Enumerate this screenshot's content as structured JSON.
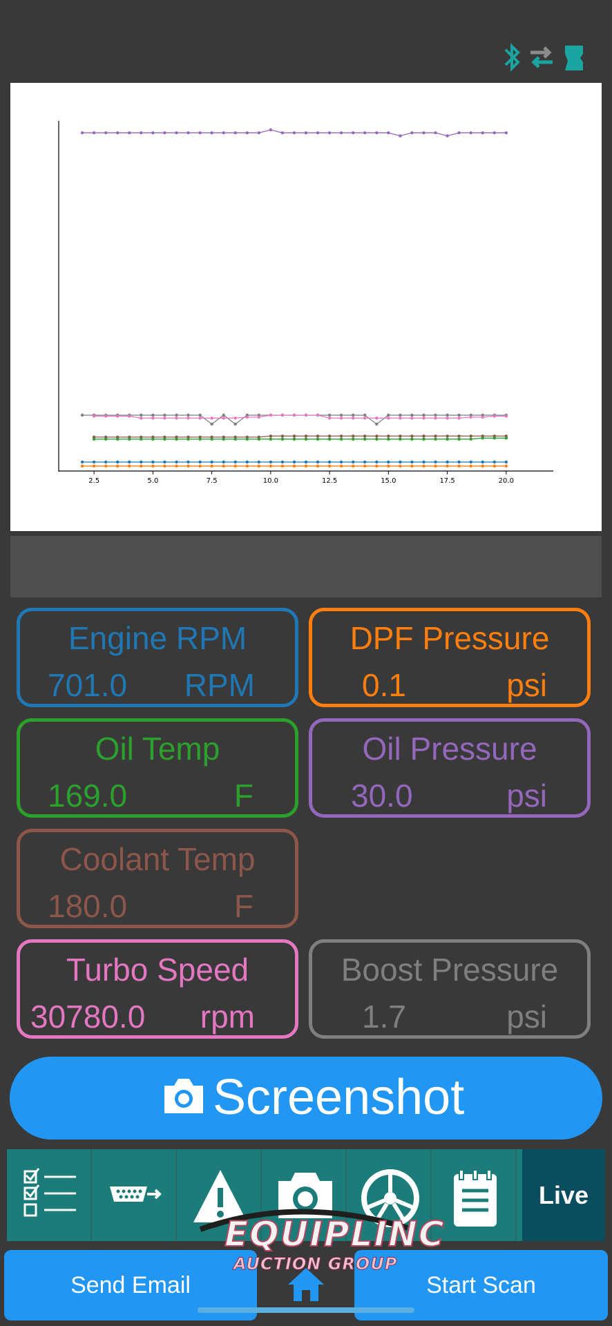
{
  "status_bar": {
    "icons": [
      "bluetooth-icon",
      "transfer-arrows-icon",
      "obd-device-icon"
    ],
    "accent": "#1aa5a0"
  },
  "chart_data": {
    "type": "line",
    "xlim": [
      1.0,
      22.0
    ],
    "x_ticks": [
      "2.5",
      "5.0",
      "7.5",
      "10.0",
      "12.5",
      "15.0",
      "17.5",
      "20.0"
    ],
    "x_tick_values": [
      2.5,
      5.0,
      7.5,
      10.0,
      12.5,
      15.0,
      17.5,
      20.0
    ],
    "y_axis_labels": "none",
    "grid": false,
    "series": [
      {
        "color": "#9467bd",
        "x_start": 2.0,
        "x_step": 0.5,
        "values": [
          30.0,
          30.0,
          30.0,
          30.0,
          30.0,
          30.0,
          30.0,
          30.0,
          30.0,
          30.0,
          30.0,
          30.0,
          30.0,
          30.0,
          30.0,
          30.0,
          30.3,
          30.0,
          30.0,
          30.0,
          30.0,
          30.0,
          30.0,
          30.0,
          30.0,
          30.0,
          30.0,
          29.7,
          30.0,
          30.0,
          30.0,
          29.7,
          30.0,
          30.0,
          30.0,
          30.0,
          30.0
        ]
      },
      {
        "color": "#7f7f7f",
        "x_start": 2.0,
        "x_step": 0.5,
        "values": [
          1.7,
          1.7,
          1.7,
          1.7,
          1.7,
          1.7,
          1.7,
          1.7,
          1.7,
          1.7,
          1.7,
          0.8,
          1.7,
          0.8,
          1.7,
          1.7,
          1.7,
          1.7,
          1.7,
          1.7,
          1.7,
          1.7,
          1.7,
          1.7,
          1.7,
          0.8,
          1.7,
          1.7,
          1.7,
          1.7,
          1.7,
          1.7,
          1.7,
          1.7,
          1.7,
          1.7,
          1.7
        ]
      },
      {
        "color": "#e377c2",
        "x_start": 2.5,
        "x_step": 0.5,
        "values": [
          1.6,
          1.6,
          1.6,
          1.6,
          1.4,
          1.4,
          1.4,
          1.4,
          1.4,
          1.4,
          1.4,
          1.4,
          1.4,
          1.5,
          1.5,
          1.7,
          1.7,
          1.7,
          1.7,
          1.7,
          1.4,
          1.4,
          1.4,
          1.4,
          1.4,
          1.4,
          1.4,
          1.4,
          1.4,
          1.4,
          1.4,
          1.4,
          1.5,
          1.5,
          1.6,
          1.6
        ]
      },
      {
        "color": "#8c564b",
        "x_start": 2.5,
        "x_step": 0.5,
        "values": [
          -0.5,
          -0.5,
          -0.5,
          -0.5,
          -0.5,
          -0.5,
          -0.5,
          -0.5,
          -0.5,
          -0.5,
          -0.5,
          -0.5,
          -0.5,
          -0.5,
          -0.5,
          -0.4,
          -0.4,
          -0.4,
          -0.4,
          -0.4,
          -0.4,
          -0.4,
          -0.4,
          -0.4,
          -0.4,
          -0.4,
          -0.4,
          -0.4,
          -0.4,
          -0.4,
          -0.4,
          -0.4,
          -0.4,
          -0.4,
          -0.4,
          -0.4
        ]
      },
      {
        "color": "#2ca02c",
        "x_start": 2.5,
        "x_step": 0.5,
        "values": [
          -0.7,
          -0.7,
          -0.7,
          -0.7,
          -0.7,
          -0.7,
          -0.7,
          -0.7,
          -0.7,
          -0.7,
          -0.7,
          -0.7,
          -0.7,
          -0.7,
          -0.7,
          -0.7,
          -0.7,
          -0.7,
          -0.7,
          -0.7,
          -0.7,
          -0.7,
          -0.7,
          -0.7,
          -0.7,
          -0.7,
          -0.7,
          -0.7,
          -0.7,
          -0.7,
          -0.7,
          -0.7,
          -0.7,
          -0.6,
          -0.6,
          -0.6
        ]
      },
      {
        "color": "#1f77b4",
        "x_start": 2.0,
        "x_step": 0.5,
        "values": [
          -3.0,
          -3.0,
          -3.0,
          -3.0,
          -3.0,
          -3.0,
          -3.0,
          -3.0,
          -3.0,
          -3.0,
          -3.0,
          -3.0,
          -3.0,
          -3.0,
          -3.0,
          -3.0,
          -3.0,
          -3.0,
          -3.0,
          -3.0,
          -3.0,
          -3.0,
          -3.0,
          -3.0,
          -3.0,
          -3.0,
          -3.0,
          -3.0,
          -3.0,
          -3.0,
          -3.0,
          -3.0,
          -3.0,
          -3.0,
          -3.0,
          -3.0,
          -3.0
        ]
      },
      {
        "color": "#ff7f0e",
        "x_start": 2.0,
        "x_step": 0.5,
        "values": [
          -3.4,
          -3.4,
          -3.4,
          -3.4,
          -3.4,
          -3.4,
          -3.4,
          -3.4,
          -3.4,
          -3.4,
          -3.4,
          -3.4,
          -3.4,
          -3.4,
          -3.4,
          -3.4,
          -3.4,
          -3.4,
          -3.4,
          -3.4,
          -3.4,
          -3.4,
          -3.4,
          -3.4,
          -3.4,
          -3.4,
          -3.4,
          -3.4,
          -3.4,
          -3.4,
          -3.4,
          -3.4,
          -3.4,
          -3.4,
          -3.4,
          -3.4,
          -3.4
        ]
      }
    ],
    "ylim": [
      -3.9,
      31.2
    ]
  },
  "gauges": [
    {
      "title": "Engine RPM",
      "value": "701.0",
      "unit": "RPM",
      "color": "#1f77b4"
    },
    {
      "title": "DPF Pressure",
      "value": "0.1",
      "unit": "psi",
      "color": "#ff7f0e"
    },
    {
      "title": "Oil Temp",
      "value": "169.0",
      "unit": "F",
      "color": "#2ca02c"
    },
    {
      "title": "Oil Pressure",
      "value": "30.0",
      "unit": "psi",
      "color": "#9467bd"
    },
    {
      "title": "Coolant Temp",
      "value": "180.0",
      "unit": "F",
      "color": "#8c564b"
    },
    {
      "title": "Turbo Speed",
      "value": "30780.0",
      "unit": "rpm",
      "color": "#e377c2"
    },
    {
      "title": "Boost Pressure",
      "value": "1.7",
      "unit": "psi",
      "color": "#7f7f7f"
    }
  ],
  "screenshot_button": {
    "label": "Screenshot",
    "icon": "camera-icon"
  },
  "nav": {
    "items": [
      "checklist-icon",
      "obd-connector-icon",
      "warning-icon",
      "camera-icon",
      "wheel-icon",
      "clipboard-icon"
    ],
    "live_label": "Live"
  },
  "logo": {
    "line1": "EQUIPLINC",
    "line2": "AUCTION GROUP"
  },
  "bottom": {
    "send_email": "Send Email",
    "start_scan": "Start Scan",
    "home_icon": "home-icon"
  }
}
